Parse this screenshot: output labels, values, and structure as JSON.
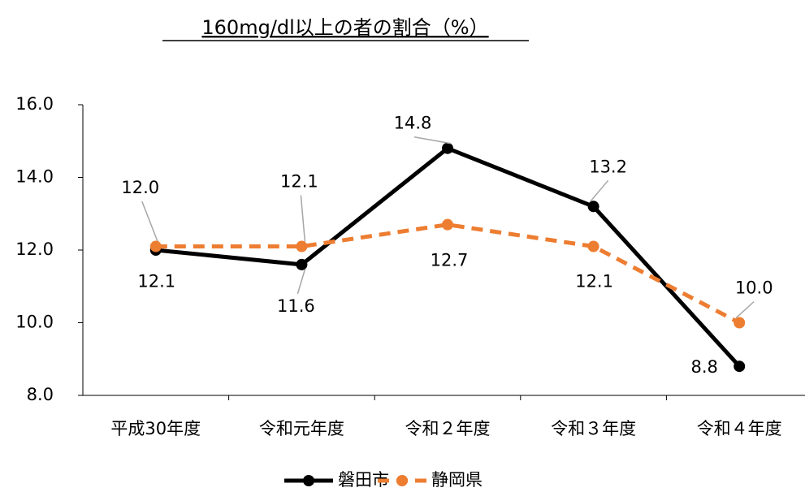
{
  "chart_data": {
    "type": "line",
    "title": "160mg/dl以上の者の割合（%）",
    "categories": [
      "平成30年度",
      "令和元年度",
      "令和２年度",
      "令和３年度",
      "令和４年度"
    ],
    "series": [
      {
        "name": "磐田市",
        "color": "#000000",
        "dashed": false,
        "values": [
          12.0,
          11.6,
          14.8,
          13.2,
          8.8
        ],
        "value_labels": [
          "12.0",
          "11.6",
          "14.8",
          "13.2",
          "8.8"
        ]
      },
      {
        "name": "静岡県",
        "color": "#ed7d31",
        "dashed": true,
        "values": [
          12.1,
          12.1,
          12.7,
          12.1,
          10.0
        ],
        "value_labels": [
          "12.1",
          "12.1",
          "12.7",
          "12.1",
          "10.0"
        ]
      }
    ],
    "ylim": [
      8,
      16
    ],
    "yticks": [
      {
        "value": 8,
        "label": "8.0"
      },
      {
        "value": 10,
        "label": "10.0"
      },
      {
        "value": 12,
        "label": "12.0"
      },
      {
        "value": 14,
        "label": "14.0"
      },
      {
        "value": 16,
        "label": "16.0"
      }
    ],
    "grid": false
  }
}
